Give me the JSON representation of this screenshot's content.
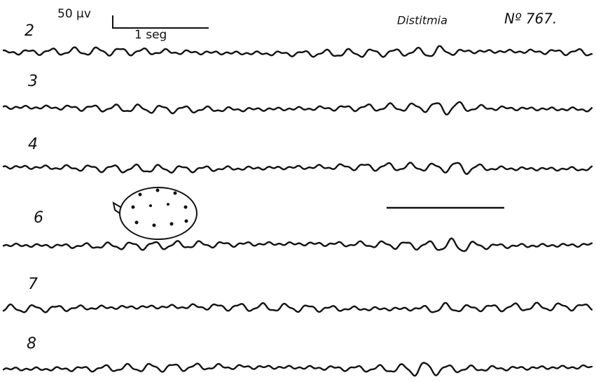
{
  "scale": {
    "amplitude": "50 µv",
    "time": "1 seg"
  },
  "header": {
    "title": "Distitmia",
    "number": "Nº 767."
  },
  "channels": [
    {
      "label": "2"
    },
    {
      "label": "3"
    },
    {
      "label": "4"
    },
    {
      "label": "6"
    },
    {
      "label": "7"
    },
    {
      "label": "8"
    }
  ]
}
